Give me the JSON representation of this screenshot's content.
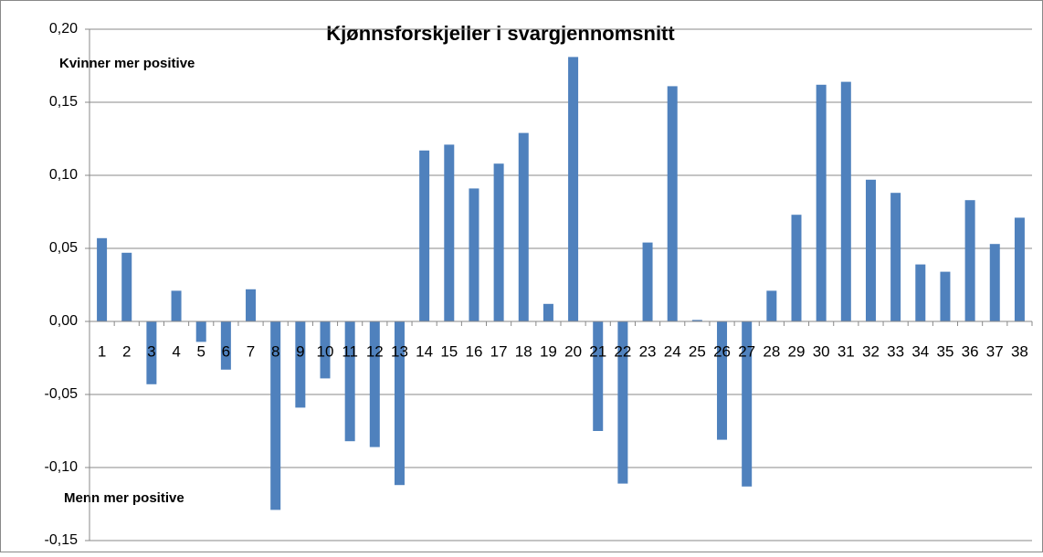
{
  "chart_data": {
    "type": "bar",
    "title": "Kjønnsforskjeller i svargjennomsnitt",
    "annotations": [
      "Kvinner mer positive",
      "Menn mer positive"
    ],
    "categories": [
      "1",
      "2",
      "3",
      "4",
      "5",
      "6",
      "7",
      "8",
      "9",
      "10",
      "11",
      "12",
      "13",
      "14",
      "15",
      "16",
      "17",
      "18",
      "19",
      "20",
      "21",
      "22",
      "23",
      "24",
      "25",
      "26",
      "27",
      "28",
      "29",
      "30",
      "31",
      "32",
      "33",
      "34",
      "35",
      "36",
      "37",
      "38"
    ],
    "values": [
      0.057,
      0.047,
      -0.043,
      0.021,
      -0.014,
      -0.033,
      0.022,
      -0.129,
      -0.059,
      -0.039,
      -0.082,
      -0.086,
      -0.112,
      0.117,
      0.121,
      0.091,
      0.108,
      0.129,
      0.012,
      0.181,
      -0.075,
      -0.111,
      0.054,
      0.161,
      0.001,
      -0.081,
      -0.113,
      0.021,
      0.073,
      0.162,
      0.164,
      0.097,
      0.088,
      0.039,
      0.034,
      0.083,
      0.053,
      0.071
    ],
    "color": "#4f81bd",
    "ylim": [
      -0.15,
      0.2
    ],
    "yticks": [
      {
        "value": -0.15,
        "label": "-0,15"
      },
      {
        "value": -0.1,
        "label": "-0,10"
      },
      {
        "value": -0.05,
        "label": "-0,05"
      },
      {
        "value": 0,
        "label": "0,00"
      },
      {
        "value": 0.05,
        "label": "0,05"
      },
      {
        "value": 0.1,
        "label": "0,10"
      },
      {
        "value": 0.15,
        "label": "0,15"
      },
      {
        "value": 0.2,
        "label": "0,20"
      }
    ],
    "grid": true
  }
}
